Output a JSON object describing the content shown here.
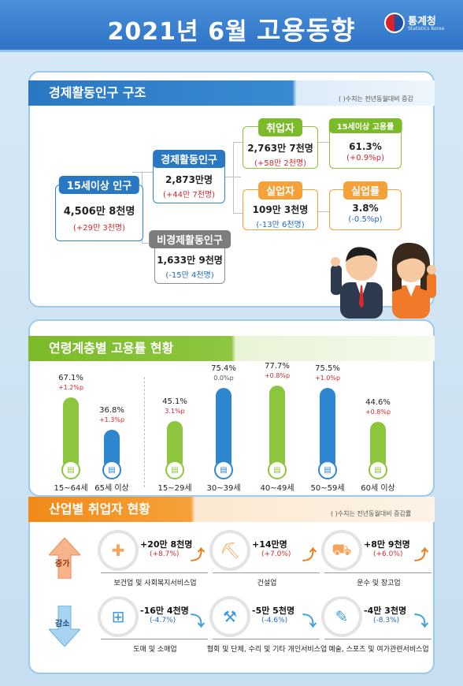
{
  "header": {
    "title_prefix": "2021년  6월 ",
    "title_main": "고용동향",
    "logo_name": "통계청",
    "logo_sub": "Statistics Korea"
  },
  "structure": {
    "title": "경제활동인구 구조",
    "note": "(  )수치는 전년동월대비 증감",
    "pop15": {
      "label": "15세이상 인구",
      "value": "4,506만 8천명",
      "change": "(+29만 3천명)"
    },
    "active": {
      "label": "경제활동인구",
      "value": "2,873만명",
      "change": "(+44만 7천명)"
    },
    "inactive": {
      "label": "비경제활동인구",
      "value": "1,633만 9천명",
      "change": "(-15만 4천명)"
    },
    "employed": {
      "label": "취업자",
      "value": "2,763만 7천명",
      "change": "(+58만 2천명)"
    },
    "employment_rate": {
      "label": "15세이상 고용률",
      "value": "61.3%",
      "change": "(+0.9%p)"
    },
    "unemployed": {
      "label": "실업자",
      "value": "109만 3천명",
      "change": "(-13만 6천명)"
    },
    "unemployment_rate": {
      "label": "실업률",
      "value": "3.8%",
      "change": "(-0.5%p)"
    }
  },
  "age": {
    "title": "연령계층별 고용률 현황",
    "groups": [
      {
        "label": "15~64세",
        "value": "67.1%",
        "change": "+1.2%p",
        "rate": 67.1,
        "color": "#8cc63f"
      },
      {
        "label": "65세 이상",
        "value": "36.8%",
        "change": "+1.3%p",
        "rate": 36.8,
        "color": "#2e86cf"
      },
      {
        "label": "15~29세",
        "value": "45.1%",
        "change": "3.1%p",
        "rate": 45.1,
        "color": "#8cc63f"
      },
      {
        "label": "30~39세",
        "value": "75.4%",
        "change": "0.0%p",
        "rate": 75.4,
        "color": "#2e86cf"
      },
      {
        "label": "40~49세",
        "value": "77.7%",
        "change": "+0.8%p",
        "rate": 77.7,
        "color": "#8cc63f"
      },
      {
        "label": "50~59세",
        "value": "75.5%",
        "change": "+1.0%p",
        "rate": 75.5,
        "color": "#2e86cf"
      },
      {
        "label": "60세 이상",
        "value": "44.6%",
        "change": "+0.8%p",
        "rate": 44.6,
        "color": "#8cc63f"
      }
    ]
  },
  "industry": {
    "title": "산업별 취업자 현황",
    "note": "(  )수치는 전년동월대비 증감률",
    "increase_label": "증가",
    "decrease_label": "감소",
    "increase": [
      {
        "name": "보건업 및 사회복지서비스업",
        "value": "+20만 8천명",
        "change": "(+8.7%)",
        "icon": "medical-kit-icon"
      },
      {
        "name": "건설업",
        "value": "+14만명",
        "change": "(+7.0%)",
        "icon": "excavator-icon"
      },
      {
        "name": "운수 및 창고업",
        "value": "+8만 9천명",
        "change": "(+6.0%)",
        "icon": "truck-icon"
      }
    ],
    "decrease": [
      {
        "name": "도매 및 소매업",
        "value": "-16만 4천명",
        "change": "(-4.7%)",
        "icon": "basket-icon"
      },
      {
        "name": "협회 및 단체, 수리 및 기타 개인서비스업",
        "value": "-5만 5천명",
        "change": "(-4.6%)",
        "icon": "tools-icon"
      },
      {
        "name": "예술, 스포츠 및 여가관련서비스업",
        "value": "-4만 3천명",
        "change": "(-8.3%)",
        "icon": "art-icon"
      }
    ]
  }
}
